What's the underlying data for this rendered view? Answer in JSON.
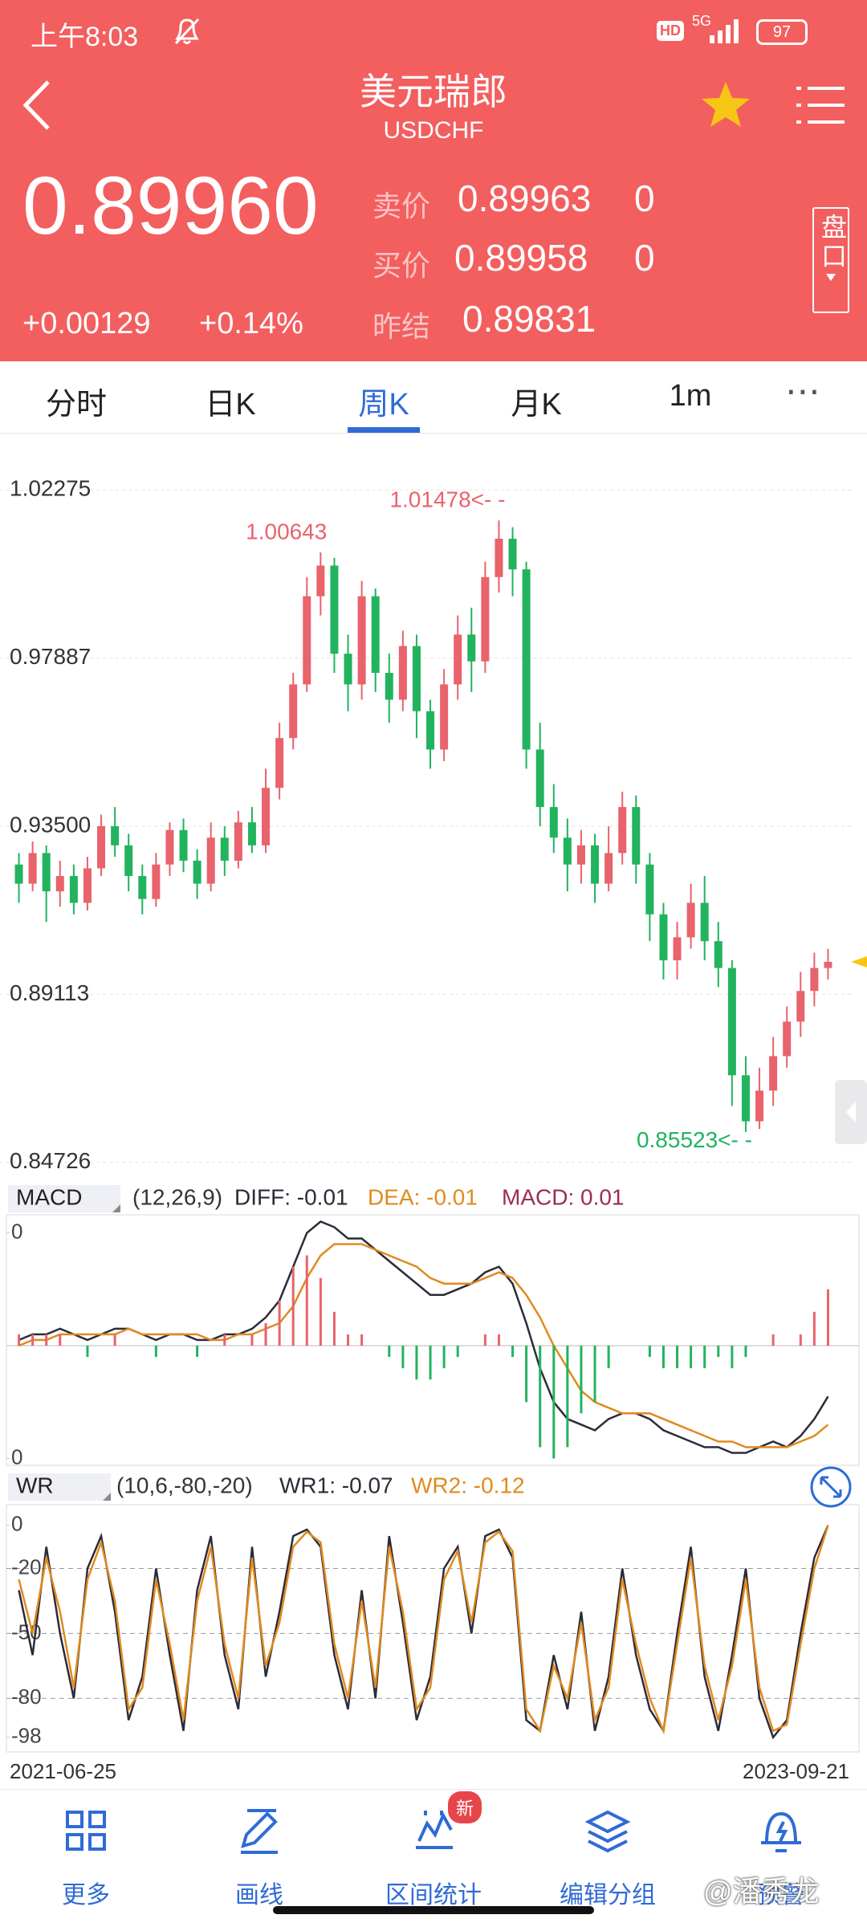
{
  "status_bar": {
    "time": "上午8:03",
    "hd": "HD",
    "network": "5G",
    "battery": "97"
  },
  "header": {
    "title": "美元瑞郎",
    "symbol": "USDCHF",
    "price": "0.89960",
    "change": "+0.00129",
    "change_pct": "+0.14%",
    "quotes": [
      {
        "label": "卖价",
        "value": "0.89963",
        "volume": "0"
      },
      {
        "label": "买价",
        "value": "0.89958",
        "volume": "0"
      },
      {
        "label": "昨结",
        "value": "0.89831"
      }
    ],
    "side_button": "盘口"
  },
  "tabs": {
    "items": [
      "分时",
      "日K",
      "周K",
      "月K",
      "1m"
    ],
    "active": 2
  },
  "chart_data": [
    {
      "type": "candlestick",
      "ylim": [
        0.8447,
        1.0343
      ],
      "yticks": [
        1.02275,
        0.97887,
        {
          "value": 0.935,
          "label": "0.93500"
        },
        0.89113,
        0.84726
      ],
      "grid": true,
      "up_color": "#e8636b",
      "down_color": "#22b35e",
      "categories": [
        "2021-06-25",
        null,
        null,
        null,
        null,
        null,
        null,
        null,
        null,
        null,
        null,
        null,
        null,
        null,
        null,
        null,
        null,
        null,
        null,
        null,
        null,
        null,
        null,
        null,
        null,
        null,
        null,
        null,
        null,
        null,
        null,
        null,
        null,
        null,
        null,
        null,
        null,
        null,
        null,
        null,
        null,
        null,
        null,
        null,
        null,
        null,
        null,
        null,
        null,
        null,
        null,
        null,
        null,
        null,
        null,
        null,
        null,
        null,
        null,
        "2023-09-21"
      ],
      "open": [
        0.925,
        0.92,
        0.928,
        0.918,
        0.922,
        0.915,
        0.924,
        0.935,
        0.93,
        0.922,
        0.916,
        0.925,
        0.934,
        0.926,
        0.92,
        0.932,
        0.926,
        0.936,
        0.93,
        0.945,
        0.958,
        0.972,
        0.995,
        1.003,
        0.98,
        0.972,
        0.995,
        0.975,
        0.968,
        0.982,
        0.965,
        0.955,
        0.972,
        0.985,
        0.978,
        1.0,
        1.01,
        1.002,
        0.955,
        0.94,
        0.932,
        0.925,
        0.93,
        0.92,
        0.928,
        0.94,
        0.925,
        0.912,
        0.9,
        0.906,
        0.915,
        0.905,
        0.898,
        0.87,
        0.858,
        0.866,
        0.875,
        0.884,
        0.892,
        0.898
      ],
      "close": [
        0.92,
        0.928,
        0.918,
        0.922,
        0.915,
        0.924,
        0.935,
        0.93,
        0.922,
        0.916,
        0.925,
        0.934,
        0.926,
        0.92,
        0.932,
        0.926,
        0.936,
        0.93,
        0.945,
        0.958,
        0.972,
        0.995,
        1.003,
        0.98,
        0.972,
        0.995,
        0.975,
        0.968,
        0.982,
        0.965,
        0.955,
        0.972,
        0.985,
        0.978,
        1.0,
        1.01,
        1.002,
        0.955,
        0.94,
        0.932,
        0.925,
        0.93,
        0.92,
        0.928,
        0.94,
        0.925,
        0.912,
        0.9,
        0.906,
        0.915,
        0.905,
        0.898,
        0.87,
        0.858,
        0.866,
        0.875,
        0.884,
        0.892,
        0.898,
        0.8996
      ],
      "high": [
        0.928,
        0.931,
        0.93,
        0.926,
        0.925,
        0.927,
        0.938,
        0.94,
        0.933,
        0.925,
        0.928,
        0.936,
        0.937,
        0.929,
        0.936,
        0.935,
        0.939,
        0.94,
        0.95,
        0.962,
        0.975,
        1.0,
        1.00643,
        1.005,
        0.985,
        0.999,
        0.997,
        0.98,
        0.986,
        0.985,
        0.968,
        0.976,
        0.99,
        0.992,
        1.004,
        1.01478,
        1.013,
        1.004,
        0.962,
        0.946,
        0.937,
        0.934,
        0.933,
        0.935,
        0.944,
        0.943,
        0.928,
        0.915,
        0.91,
        0.92,
        0.922,
        0.91,
        0.9,
        0.875,
        0.872,
        0.88,
        0.888,
        0.897,
        0.902,
        0.903
      ],
      "low": [
        0.915,
        0.918,
        0.91,
        0.914,
        0.912,
        0.913,
        0.922,
        0.927,
        0.918,
        0.912,
        0.914,
        0.922,
        0.923,
        0.916,
        0.918,
        0.922,
        0.924,
        0.928,
        0.928,
        0.942,
        0.955,
        0.97,
        0.99,
        0.975,
        0.965,
        0.968,
        0.97,
        0.962,
        0.965,
        0.958,
        0.95,
        0.952,
        0.968,
        0.97,
        0.975,
        0.996,
        0.995,
        0.95,
        0.935,
        0.928,
        0.918,
        0.92,
        0.915,
        0.918,
        0.925,
        0.92,
        0.905,
        0.895,
        0.895,
        0.903,
        0.9,
        0.893,
        0.862,
        0.85523,
        0.856,
        0.862,
        0.872,
        0.88,
        0.888,
        0.895
      ],
      "annotations": [
        {
          "value": 1.00643,
          "label": "1.00643"
        },
        {
          "value": 1.01478,
          "label": "1.01478<- -"
        },
        {
          "value": 0.85523,
          "label": "0.85523<- -"
        }
      ]
    },
    {
      "type": "macd",
      "label": "MACD",
      "params": "(12,26,9)",
      "ylim": [
        -0.0205,
        0.0222
      ],
      "yticks": [
        {
          "value": 0.02,
          "label": "0"
        },
        {
          "value": -0.02,
          "label": "0"
        }
      ],
      "series": [
        {
          "name": "DIFF: -0.01",
          "color": "#2b2b3a",
          "values": [
            0.001,
            0.002,
            0.002,
            0.003,
            0.002,
            0.001,
            0.002,
            0.003,
            0.003,
            0.002,
            0.001,
            0.002,
            0.002,
            0.001,
            0.001,
            0.002,
            0.002,
            0.003,
            0.005,
            0.008,
            0.014,
            0.02,
            0.022,
            0.021,
            0.019,
            0.019,
            0.017,
            0.015,
            0.013,
            0.011,
            0.009,
            0.009,
            0.01,
            0.011,
            0.013,
            0.014,
            0.011,
            0.004,
            -0.004,
            -0.01,
            -0.013,
            -0.014,
            -0.015,
            -0.013,
            -0.012,
            -0.012,
            -0.013,
            -0.015,
            -0.016,
            -0.017,
            -0.018,
            -0.018,
            -0.019,
            -0.019,
            -0.018,
            -0.017,
            -0.018,
            -0.016,
            -0.013,
            -0.009
          ]
        },
        {
          "name": "DEA: -0.01",
          "color": "#e08a1e",
          "values": [
            0.0,
            0.001,
            0.001,
            0.002,
            0.002,
            0.002,
            0.002,
            0.002,
            0.003,
            0.002,
            0.002,
            0.002,
            0.002,
            0.002,
            0.001,
            0.001,
            0.002,
            0.002,
            0.003,
            0.004,
            0.007,
            0.012,
            0.016,
            0.018,
            0.018,
            0.018,
            0.017,
            0.016,
            0.015,
            0.014,
            0.012,
            0.011,
            0.011,
            0.011,
            0.012,
            0.013,
            0.012,
            0.009,
            0.005,
            0.0,
            -0.004,
            -0.008,
            -0.01,
            -0.011,
            -0.012,
            -0.012,
            -0.012,
            -0.013,
            -0.014,
            -0.015,
            -0.016,
            -0.017,
            -0.017,
            -0.018,
            -0.018,
            -0.018,
            -0.018,
            -0.017,
            -0.016,
            -0.014
          ]
        },
        {
          "name": "MACD: 0.01",
          "type": "bar",
          "color": "#9b2d55",
          "up_color": "#e8636b",
          "down_color": "#22b35e",
          "values": [
            0.002,
            0.002,
            0.002,
            0.002,
            0,
            -0.002,
            0,
            0.002,
            0,
            0,
            -0.002,
            0,
            0,
            -0.002,
            0,
            0.002,
            0,
            0.002,
            0.004,
            0.008,
            0.014,
            0.016,
            0.012,
            0.006,
            0.002,
            0.002,
            0,
            -0.002,
            -0.004,
            -0.006,
            -0.006,
            -0.004,
            -0.002,
            0,
            0.002,
            0.002,
            -0.002,
            -0.01,
            -0.018,
            -0.02,
            -0.018,
            -0.012,
            -0.01,
            -0.004,
            0,
            0,
            -0.002,
            -0.004,
            -0.004,
            -0.004,
            -0.004,
            -0.002,
            -0.004,
            -0.002,
            0,
            0.002,
            0,
            0.002,
            0.006,
            0.01
          ]
        }
      ]
    },
    {
      "type": "wr",
      "label": "WR",
      "params": "(10,6,-80,-20)",
      "ylim": [
        -104,
        8
      ],
      "yticks": [
        0,
        -20,
        -50,
        -80,
        -98
      ],
      "series": [
        {
          "name": "WR1: -0.07",
          "color": "#2b2b3a",
          "values": [
            -30,
            -60,
            -10,
            -50,
            -80,
            -20,
            -5,
            -40,
            -90,
            -70,
            -20,
            -60,
            -95,
            -30,
            -5,
            -60,
            -85,
            -10,
            -70,
            -40,
            -5,
            -2,
            -10,
            -60,
            -85,
            -30,
            -80,
            -5,
            -45,
            -90,
            -70,
            -20,
            -10,
            -50,
            -5,
            -2,
            -15,
            -90,
            -95,
            -60,
            -85,
            -40,
            -95,
            -70,
            -20,
            -60,
            -85,
            -95,
            -50,
            -10,
            -70,
            -95,
            -60,
            -20,
            -80,
            -98,
            -90,
            -50,
            -15,
            -0.07
          ]
        },
        {
          "name": "WR2: -0.12",
          "color": "#e08a1e",
          "values": [
            -25,
            -50,
            -15,
            -40,
            -75,
            -25,
            -8,
            -35,
            -85,
            -75,
            -25,
            -55,
            -90,
            -35,
            -10,
            -55,
            -80,
            -15,
            -65,
            -45,
            -10,
            -3,
            -8,
            -55,
            -80,
            -35,
            -75,
            -10,
            -40,
            -85,
            -75,
            -25,
            -12,
            -45,
            -8,
            -3,
            -12,
            -85,
            -95,
            -65,
            -80,
            -45,
            -90,
            -75,
            -25,
            -55,
            -80,
            -95,
            -55,
            -15,
            -65,
            -90,
            -65,
            -25,
            -75,
            -95,
            -92,
            -55,
            -20,
            -0.12
          ]
        }
      ]
    }
  ],
  "bottom_nav": {
    "items": [
      "更多",
      "画线",
      "区间统计",
      "编辑分组",
      "预警"
    ],
    "badge": "新",
    "watermark": "@潘秀龙"
  }
}
